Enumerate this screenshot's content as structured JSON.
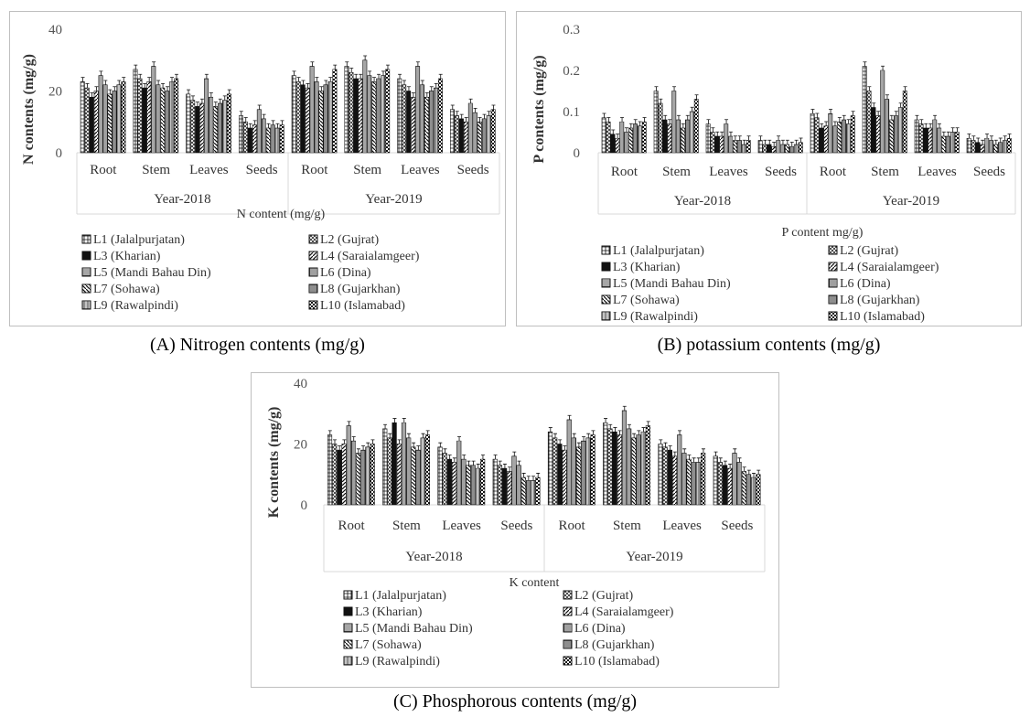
{
  "captions": {
    "a": "(A) Nitrogen contents (mg/g)",
    "b": "(B) potassium contents (mg/g)",
    "c": "(C) Phosphorous contents (mg/g)"
  },
  "colors": {
    "bar_stroke": "#111111",
    "frame": "#bfbfbf",
    "grid": "#d9d9d9"
  },
  "chart_data": [
    {
      "type": "bar",
      "ylabel": "N contents (mg/g)",
      "xlabel": "N content (mg/g)",
      "ylim": [
        0,
        40
      ],
      "yticks": [
        "0",
        "20",
        "40"
      ],
      "groups": [
        "Year-2018",
        "Year-2019"
      ],
      "categories": [
        "Root",
        "Stem",
        "Leaves",
        "Seeds"
      ],
      "series_labels": [
        "L1 (Jalalpurjatan)",
        "L2 (Gujrat)",
        "L3 (Kharian)",
        "L4 (Saraialamgeer)",
        "L5 (Mandi Bahau Din)",
        "L6 (Dina)",
        "L7 (Sohawa)",
        "L8 (Gujarkhan)",
        "L9 (Rawalpindi)",
        "L10 (Islamabad)"
      ],
      "values": [
        [
          [
            23,
            21,
            18,
            20,
            25,
            22,
            19,
            20,
            22,
            23
          ],
          [
            27,
            24,
            21,
            23,
            28,
            22,
            21,
            20,
            23,
            24
          ],
          [
            19,
            17,
            15,
            16,
            24,
            18,
            15,
            16,
            17,
            19
          ],
          [
            12,
            10,
            8,
            9,
            14,
            11,
            8,
            9,
            8,
            9
          ]
        ],
        [
          [
            25,
            23,
            22,
            21,
            28,
            23,
            20,
            22,
            23,
            27
          ],
          [
            28,
            26,
            24,
            24,
            30,
            25,
            23,
            24,
            25,
            27
          ],
          [
            24,
            22,
            20,
            18,
            28,
            22,
            18,
            20,
            21,
            24
          ],
          [
            14,
            12,
            11,
            10,
            16,
            13,
            10,
            11,
            12,
            14
          ]
        ]
      ],
      "legend_position": "bottom"
    },
    {
      "type": "bar",
      "ylabel": "P contents (mg/g)",
      "xlabel": "P content mg/g)",
      "ylim": [
        0,
        0.3
      ],
      "yticks": [
        "0",
        "0.1",
        "0.2",
        "0.3"
      ],
      "groups": [
        "Year-2018",
        "Year-2019"
      ],
      "categories": [
        "Root",
        "Stem",
        "Leaves",
        "Seeds"
      ],
      "series_labels": [
        "L1 (Jalalpurjatan)",
        "L2 (Gujrat)",
        "L3 (Kharian)",
        "L4 (Saraialamgeer)",
        "L5 (Mandi Bahau Din)",
        "L6 (Dina)",
        "L7 (Sohawa)",
        "L8 (Gujarkhan)",
        "L9 (Rawalpindi)",
        "L10 (Islamabad)"
      ],
      "values": [
        [
          [
            0.085,
            0.075,
            0.045,
            0.035,
            0.075,
            0.05,
            0.06,
            0.07,
            0.065,
            0.075
          ],
          [
            0.15,
            0.12,
            0.08,
            0.07,
            0.15,
            0.08,
            0.06,
            0.08,
            0.1,
            0.13
          ],
          [
            0.07,
            0.05,
            0.04,
            0.04,
            0.07,
            0.04,
            0.03,
            0.03,
            0.02,
            0.03
          ],
          [
            0.03,
            0.02,
            0.02,
            0.015,
            0.03,
            0.02,
            0.02,
            0.015,
            0.02,
            0.025
          ]
        ],
        [
          [
            0.095,
            0.085,
            0.06,
            0.065,
            0.095,
            0.065,
            0.075,
            0.08,
            0.07,
            0.09
          ],
          [
            0.21,
            0.15,
            0.11,
            0.09,
            0.2,
            0.13,
            0.08,
            0.09,
            0.11,
            0.15
          ],
          [
            0.08,
            0.07,
            0.06,
            0.06,
            0.08,
            0.06,
            0.04,
            0.04,
            0.05,
            0.05
          ],
          [
            0.035,
            0.03,
            0.025,
            0.02,
            0.035,
            0.03,
            0.02,
            0.025,
            0.03,
            0.035
          ]
        ]
      ],
      "legend_position": "bottom"
    },
    {
      "type": "bar",
      "ylabel": "K contents (mg/g)",
      "xlabel": "K content",
      "ylim": [
        0,
        40
      ],
      "yticks": [
        "0",
        "20",
        "40"
      ],
      "groups": [
        "Year-2018",
        "Year-2019"
      ],
      "categories": [
        "Root",
        "Stem",
        "Leaves",
        "Seeds"
      ],
      "series_labels": [
        "L1 (Jalalpurjatan)",
        "L2 (Gujrat)",
        "L3 (Kharian)",
        "L4 (Saraialamgeer)",
        "L5 (Mandi Bahau Din)",
        "L6 (Dina)",
        "L7 (Sohawa)",
        "L8 (Gujarkhan)",
        "L9 (Rawalpindi)",
        "L10 (Islamabad)"
      ],
      "values": [
        [
          [
            23,
            20,
            18,
            20,
            26,
            21,
            17,
            18,
            19,
            20
          ],
          [
            25,
            22,
            27,
            20,
            27,
            22,
            19,
            18,
            22,
            23
          ],
          [
            19,
            17,
            15,
            14,
            21,
            15,
            13,
            13,
            12,
            15
          ],
          [
            15,
            13,
            12,
            11,
            16,
            13,
            9,
            8,
            8,
            9
          ]
        ],
        [
          [
            24,
            22,
            20,
            18,
            28,
            22,
            19,
            21,
            22,
            23
          ],
          [
            27,
            25,
            24,
            23,
            31,
            25,
            22,
            23,
            24,
            26
          ],
          [
            20,
            19,
            18,
            16,
            23,
            17,
            15,
            14,
            14,
            17
          ],
          [
            16,
            14,
            13,
            12,
            17,
            14,
            11,
            10,
            9,
            10
          ]
        ]
      ],
      "legend_position": "bottom"
    }
  ]
}
